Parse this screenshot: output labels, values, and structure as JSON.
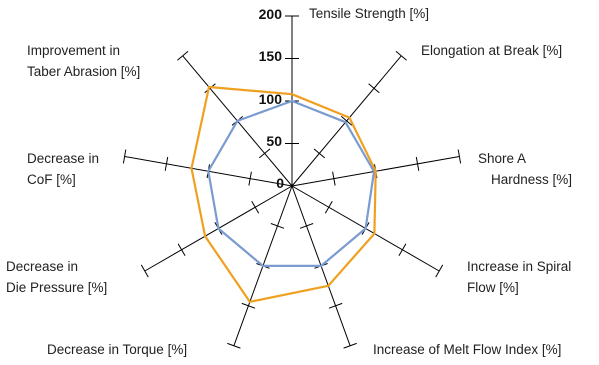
{
  "chart_data": {
    "type": "radar",
    "axes": [
      [
        "Tensile Strength [%]"
      ],
      [
        "Elongation at Break [%]"
      ],
      [
        "Shore A",
        "Hardness [%]"
      ],
      [
        "Increase in Spiral",
        "Flow [%]"
      ],
      [
        "Increase of Melt Flow Index [%]"
      ],
      [
        "Decrease in Torque [%]"
      ],
      [
        "Decrease in",
        "Die Pressure [%]"
      ],
      [
        "Decrease in",
        "CoF [%]"
      ],
      [
        "Improvement in",
        "Taber Abrasion [%]"
      ]
    ],
    "scale_labels": [
      "0",
      "50",
      "100",
      "150",
      "200"
    ],
    "rmax": 200,
    "tick_step": 50,
    "grid": false,
    "series": [
      {
        "color": "#7a9bd0",
        "values": [
          100,
          98,
          98,
          100,
          100,
          100,
          100,
          100,
          100
        ]
      },
      {
        "color": "#f0a020",
        "values": [
          108,
          105,
          100,
          112,
          125,
          145,
          118,
          120,
          152
        ]
      }
    ]
  }
}
